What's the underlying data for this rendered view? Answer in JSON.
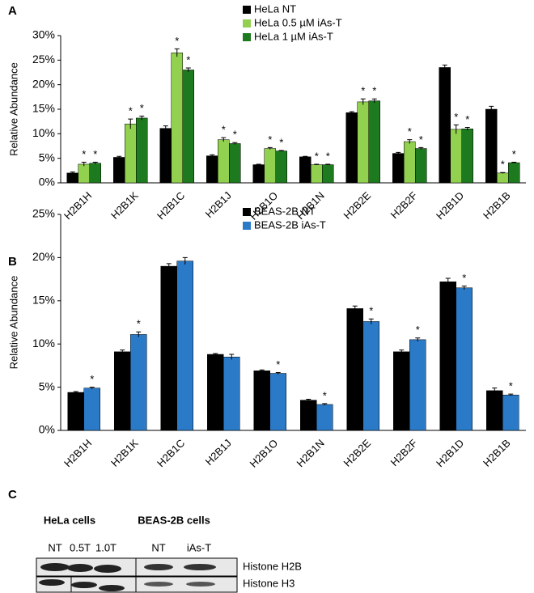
{
  "chart_data": [
    {
      "type": "bar",
      "label": "A",
      "y_label": "Relative Abundance",
      "categories": [
        "H2B1H",
        "H2B1K",
        "H2B1C",
        "H2B1J",
        "H2B1O",
        "H2B1N",
        "H2B2E",
        "H2B2F",
        "H2B1D",
        "H2B1B"
      ],
      "series": [
        {
          "name": "HeLa NT",
          "color": "#000000",
          "values": [
            2,
            5.2,
            11.1,
            5.5,
            3.7,
            5.3,
            14.3,
            6,
            23.5,
            15
          ],
          "errors": [
            0.2,
            0.2,
            0.5,
            0.2,
            0.1,
            0.1,
            0.2,
            0.2,
            0.5,
            0.6
          ],
          "annotations": [
            null,
            null,
            null,
            null,
            null,
            null,
            null,
            null,
            null,
            null
          ]
        },
        {
          "name": "HeLa 0.5 µM iAs-T",
          "color": "#92d050",
          "values": [
            3.8,
            12,
            26.5,
            8.8,
            7,
            3.7,
            16.5,
            8.4,
            10.9,
            2
          ],
          "errors": [
            0.4,
            1,
            0.8,
            0.4,
            0.2,
            0.1,
            0.6,
            0.4,
            0.9,
            0.1
          ],
          "annotations": [
            "*",
            "*",
            "*",
            "*",
            "*",
            "*",
            "*",
            "*",
            "*",
            "*"
          ]
        },
        {
          "name": "HeLa 1 µM iAs-T",
          "color": "#1e7a1e",
          "values": [
            4,
            13.2,
            23,
            8,
            6.5,
            3.7,
            16.7,
            7,
            11,
            4.1
          ],
          "errors": [
            0.2,
            0.4,
            0.4,
            0.2,
            0.1,
            0.1,
            0.4,
            0.2,
            0.3,
            0.1
          ],
          "annotations": [
            "*",
            "*",
            "*",
            "*",
            "*",
            "*",
            "*",
            "*",
            "*",
            "*"
          ]
        }
      ],
      "ylim": [
        0,
        30
      ],
      "yticks": [
        {
          "value": 0,
          "label": "0%"
        },
        {
          "value": 5,
          "label": "5%"
        },
        {
          "value": 10,
          "label": "10%"
        },
        {
          "value": 15,
          "label": "15%"
        },
        {
          "value": 20,
          "label": "20%"
        },
        {
          "value": 25,
          "label": "25%"
        },
        {
          "value": 30,
          "label": "30%"
        }
      ]
    },
    {
      "type": "bar",
      "label": "B",
      "y_label": "Relative Abundance",
      "categories": [
        "H2B1H",
        "H2B1K",
        "H2B1C",
        "H2B1J",
        "H2B1O",
        "H2B1N",
        "H2B2E",
        "H2B2F",
        "H2B1D",
        "H2B1B"
      ],
      "series": [
        {
          "name": "BEAS-2B NT",
          "color": "#000000",
          "values": [
            4.4,
            9.1,
            19,
            8.8,
            6.9,
            3.5,
            14.1,
            9.1,
            17.2,
            4.6
          ],
          "errors": [
            0.1,
            0.2,
            0.3,
            0.1,
            0.1,
            0.1,
            0.3,
            0.2,
            0.4,
            0.3
          ],
          "annotations": [
            null,
            null,
            null,
            null,
            null,
            null,
            null,
            null,
            null,
            null
          ]
        },
        {
          "name": "BEAS-2B iAs-T",
          "color": "#2a7ac8",
          "values": [
            4.9,
            11.1,
            19.6,
            8.5,
            6.6,
            3,
            12.6,
            10.5,
            16.5,
            4.1
          ],
          "errors": [
            0.1,
            0.3,
            0.4,
            0.3,
            0.1,
            0.1,
            0.3,
            0.2,
            0.2,
            0.1
          ],
          "annotations": [
            "*",
            "*",
            null,
            null,
            "*",
            "*",
            "*",
            "*",
            "*",
            "*"
          ]
        }
      ],
      "ylim": [
        0,
        25
      ],
      "yticks": [
        {
          "value": 0,
          "label": "0%"
        },
        {
          "value": 5,
          "label": "5%"
        },
        {
          "value": 10,
          "label": "10%"
        },
        {
          "value": 15,
          "label": "15%"
        },
        {
          "value": 20,
          "label": "20%"
        },
        {
          "value": 25,
          "label": "25%"
        }
      ]
    }
  ],
  "blot": {
    "label": "C",
    "groups": [
      "HeLa cells",
      "BEAS-2B cells"
    ],
    "lanes": [
      "NT",
      "0.5T",
      "1.0T",
      "NT",
      "iAs-T"
    ],
    "rows": [
      "Histone H2B",
      "Histone H3"
    ]
  }
}
